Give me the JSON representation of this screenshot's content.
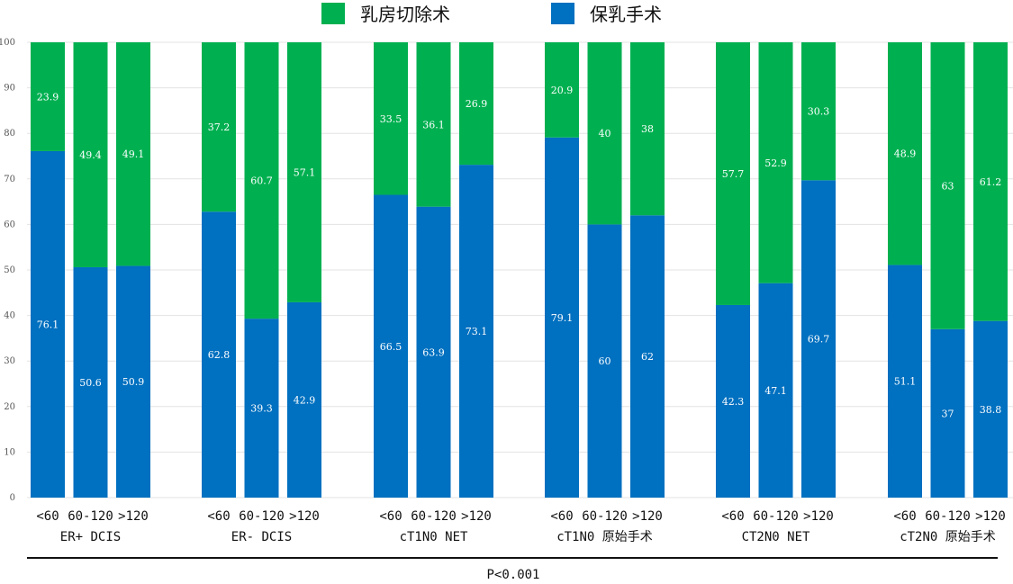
{
  "chart_data": {
    "type": "bar",
    "stacked": true,
    "ylim": [
      0,
      100
    ],
    "yticks": [
      "0",
      "10",
      "20",
      "30",
      "40",
      "50",
      "60",
      "70",
      "80",
      "90",
      "100"
    ],
    "legend": [
      {
        "name": "乳房切除术",
        "color": "#00b050"
      },
      {
        "name": "保乳手术",
        "color": "#0070c0"
      }
    ],
    "legend_position": "top",
    "grid": true,
    "groups": [
      {
        "label": "ER+ DCIS",
        "categories": [
          "<60",
          "60-120",
          ">120"
        ],
        "mastectomy": [
          23.9,
          49.4,
          49.1
        ],
        "bcs": [
          76.1,
          50.6,
          50.9
        ]
      },
      {
        "label": "ER- DCIS",
        "categories": [
          "<60",
          "60-120",
          ">120"
        ],
        "mastectomy": [
          37.2,
          60.7,
          57.1
        ],
        "bcs": [
          62.8,
          39.3,
          42.9
        ]
      },
      {
        "label": "cT1N0 NET",
        "categories": [
          "<60",
          "60-120",
          ">120"
        ],
        "mastectomy": [
          33.5,
          36.1,
          26.9
        ],
        "bcs": [
          66.5,
          63.9,
          73.1
        ]
      },
      {
        "label": "cT1N0 原始手术",
        "categories": [
          "<60",
          "60-120",
          ">120"
        ],
        "mastectomy": [
          20.9,
          40,
          38
        ],
        "bcs": [
          79.1,
          60,
          62
        ]
      },
      {
        "label": "CT2N0 NET",
        "categories": [
          "<60",
          "60-120",
          ">120"
        ],
        "mastectomy": [
          57.7,
          52.9,
          30.3
        ],
        "bcs": [
          42.3,
          47.1,
          69.7
        ]
      },
      {
        "label": "cT2N0 原始手术",
        "categories": [
          "<60",
          "60-120",
          ">120"
        ],
        "mastectomy": [
          48.9,
          63,
          61.2
        ],
        "bcs": [
          51.1,
          37,
          38.8
        ]
      }
    ],
    "note": "P<0.001"
  }
}
